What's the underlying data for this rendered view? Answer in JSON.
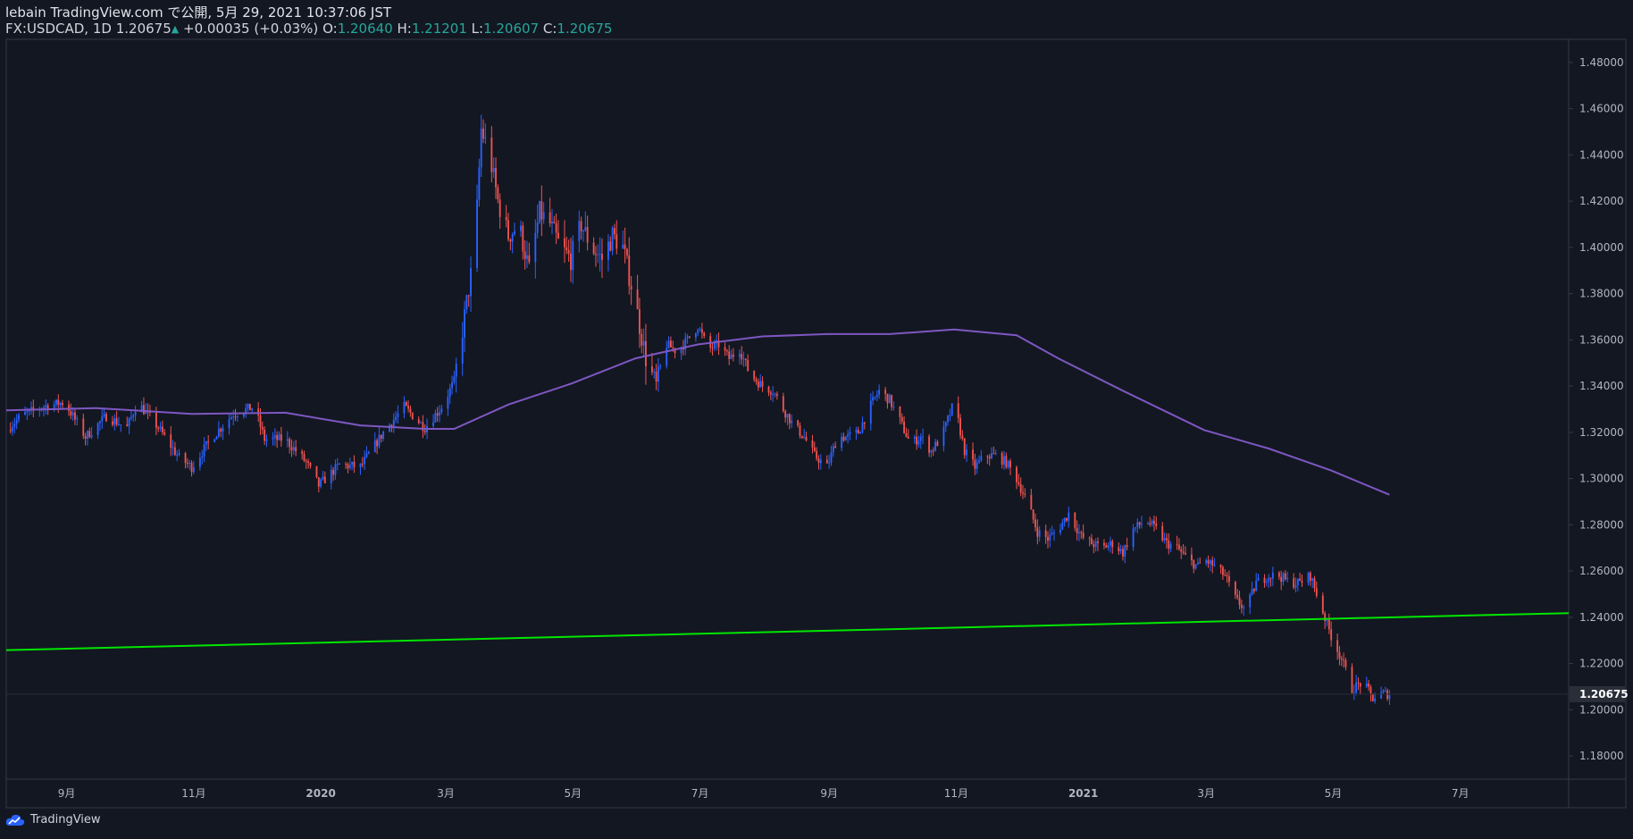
{
  "header": {
    "publish_line": "lebain TradingView.com で公開, 5月 29, 2021 10:37:06 JST",
    "symbol": "FX:USDCAD, 1D",
    "last": "1.20675",
    "change": "+0.00035 (+0.03%)",
    "ohlc": [
      {
        "key": "O:",
        "value": "1.20640"
      },
      {
        "key": "H:",
        "value": "1.21201"
      },
      {
        "key": "L:",
        "value": "1.20607"
      },
      {
        "key": "C:",
        "value": "1.20675"
      }
    ]
  },
  "footer": {
    "brand": "TradingView"
  },
  "colors": {
    "background": "#131722",
    "up": "#2962ff",
    "down": "#ef5350",
    "ma": "#7e57c2",
    "trendline": "#00e600",
    "ohlc_value": "#26a69a",
    "axis_text": "#b2b5be",
    "frame": "#363a45"
  },
  "chart_data": {
    "type": "candlestick",
    "symbol": "FX:USDCAD",
    "interval": "1D",
    "last_price": "1.20675",
    "ylim": [
      1.17,
      1.49
    ],
    "y_ticks": [
      "1.18000",
      "1.20000",
      "1.22000",
      "1.24000",
      "1.26000",
      "1.28000",
      "1.30000",
      "1.32000",
      "1.34000",
      "1.36000",
      "1.38000",
      "1.40000",
      "1.42000",
      "1.44000",
      "1.46000",
      "1.48000"
    ],
    "x_ticks": [
      {
        "label": "9月",
        "date": "2019-09-01"
      },
      {
        "label": "11月",
        "date": "2019-11-01"
      },
      {
        "label": "2020",
        "date": "2020-01-01"
      },
      {
        "label": "3月",
        "date": "2020-03-01"
      },
      {
        "label": "5月",
        "date": "2020-05-01"
      },
      {
        "label": "7月",
        "date": "2020-07-01"
      },
      {
        "label": "9月",
        "date": "2020-09-01"
      },
      {
        "label": "11月",
        "date": "2020-11-01"
      },
      {
        "label": "2021",
        "date": "2021-01-01"
      },
      {
        "label": "3月",
        "date": "2021-03-01"
      },
      {
        "label": "5月",
        "date": "2021-05-01"
      },
      {
        "label": "7月",
        "date": "2021-07-01"
      }
    ],
    "xlim": [
      "2019-08-03",
      "2021-08-22"
    ],
    "close_path": [
      [
        "2019-08-03",
        1.321
      ],
      [
        "2019-08-10",
        1.327
      ],
      [
        "2019-08-20",
        1.331
      ],
      [
        "2019-08-31",
        1.333
      ],
      [
        "2019-09-10",
        1.318
      ],
      [
        "2019-09-20",
        1.327
      ],
      [
        "2019-09-30",
        1.322
      ],
      [
        "2019-10-05",
        1.333
      ],
      [
        "2019-10-15",
        1.322
      ],
      [
        "2019-10-25",
        1.309
      ],
      [
        "2019-10-31",
        1.305
      ],
      [
        "2019-11-10",
        1.318
      ],
      [
        "2019-11-20",
        1.328
      ],
      [
        "2019-11-30",
        1.331
      ],
      [
        "2019-12-05",
        1.317
      ],
      [
        "2019-12-15",
        1.317
      ],
      [
        "2019-12-25",
        1.307
      ],
      [
        "2019-12-31",
        1.297
      ],
      [
        "2020-01-10",
        1.306
      ],
      [
        "2020-01-20",
        1.305
      ],
      [
        "2020-01-31",
        1.32
      ],
      [
        "2020-02-10",
        1.331
      ],
      [
        "2020-02-20",
        1.322
      ],
      [
        "2020-02-28",
        1.331
      ],
      [
        "2020-03-05",
        1.342
      ],
      [
        "2020-03-10",
        1.37
      ],
      [
        "2020-03-15",
        1.4
      ],
      [
        "2020-03-18",
        1.451
      ],
      [
        "2020-03-22",
        1.44
      ],
      [
        "2020-03-26",
        1.42
      ],
      [
        "2020-03-31",
        1.405
      ],
      [
        "2020-04-05",
        1.41
      ],
      [
        "2020-04-10",
        1.39
      ],
      [
        "2020-04-15",
        1.415
      ],
      [
        "2020-04-20",
        1.41
      ],
      [
        "2020-04-25",
        1.4
      ],
      [
        "2020-04-30",
        1.395
      ],
      [
        "2020-05-05",
        1.41
      ],
      [
        "2020-05-10",
        1.4
      ],
      [
        "2020-05-15",
        1.395
      ],
      [
        "2020-05-20",
        1.405
      ],
      [
        "2020-05-25",
        1.4
      ],
      [
        "2020-05-31",
        1.376
      ],
      [
        "2020-06-05",
        1.352
      ],
      [
        "2020-06-10",
        1.34
      ],
      [
        "2020-06-15",
        1.358
      ],
      [
        "2020-06-20",
        1.355
      ],
      [
        "2020-06-25",
        1.36
      ],
      [
        "2020-06-30",
        1.366
      ],
      [
        "2020-07-05",
        1.356
      ],
      [
        "2020-07-10",
        1.358
      ],
      [
        "2020-07-15",
        1.352
      ],
      [
        "2020-07-20",
        1.356
      ],
      [
        "2020-07-25",
        1.345
      ],
      [
        "2020-07-31",
        1.34
      ],
      [
        "2020-08-05",
        1.338
      ],
      [
        "2020-08-10",
        1.33
      ],
      [
        "2020-08-15",
        1.323
      ],
      [
        "2020-08-20",
        1.318
      ],
      [
        "2020-08-25",
        1.31
      ],
      [
        "2020-08-31",
        1.305
      ],
      [
        "2020-09-05",
        1.318
      ],
      [
        "2020-09-10",
        1.318
      ],
      [
        "2020-09-15",
        1.32
      ],
      [
        "2020-09-20",
        1.33
      ],
      [
        "2020-09-25",
        1.338
      ],
      [
        "2020-09-30",
        1.334
      ],
      [
        "2020-10-05",
        1.325
      ],
      [
        "2020-10-10",
        1.315
      ],
      [
        "2020-10-15",
        1.318
      ],
      [
        "2020-10-20",
        1.312
      ],
      [
        "2020-10-25",
        1.318
      ],
      [
        "2020-10-31",
        1.333
      ],
      [
        "2020-11-05",
        1.312
      ],
      [
        "2020-11-10",
        1.305
      ],
      [
        "2020-11-15",
        1.31
      ],
      [
        "2020-11-20",
        1.31
      ],
      [
        "2020-11-25",
        1.307
      ],
      [
        "2020-11-30",
        1.3
      ],
      [
        "2020-12-05",
        1.29
      ],
      [
        "2020-12-10",
        1.277
      ],
      [
        "2020-12-15",
        1.274
      ],
      [
        "2020-12-20",
        1.278
      ],
      [
        "2020-12-25",
        1.285
      ],
      [
        "2020-12-31",
        1.275
      ],
      [
        "2021-01-05",
        1.272
      ],
      [
        "2021-01-10",
        1.27
      ],
      [
        "2021-01-15",
        1.272
      ],
      [
        "2021-01-20",
        1.268
      ],
      [
        "2021-01-25",
        1.278
      ],
      [
        "2021-01-31",
        1.282
      ],
      [
        "2021-02-05",
        1.278
      ],
      [
        "2021-02-10",
        1.272
      ],
      [
        "2021-02-15",
        1.27
      ],
      [
        "2021-02-20",
        1.265
      ],
      [
        "2021-02-25",
        1.262
      ],
      [
        "2021-02-28",
        1.265
      ],
      [
        "2021-03-05",
        1.262
      ],
      [
        "2021-03-10",
        1.258
      ],
      [
        "2021-03-15",
        1.248
      ],
      [
        "2021-03-20",
        1.243
      ],
      [
        "2021-03-25",
        1.255
      ],
      [
        "2021-03-31",
        1.258
      ],
      [
        "2021-04-05",
        1.258
      ],
      [
        "2021-04-10",
        1.255
      ],
      [
        "2021-04-15",
        1.255
      ],
      [
        "2021-04-20",
        1.258
      ],
      [
        "2021-04-25",
        1.245
      ],
      [
        "2021-04-30",
        1.232
      ],
      [
        "2021-05-05",
        1.222
      ],
      [
        "2021-05-10",
        1.209
      ],
      [
        "2021-05-15",
        1.212
      ],
      [
        "2021-05-20",
        1.205
      ],
      [
        "2021-05-25",
        1.207
      ],
      [
        "2021-05-28",
        1.20675
      ]
    ],
    "series": [
      {
        "type": "line",
        "color": "#7e57c2",
        "points": [
          [
            "2019-08-03",
            1.3295
          ],
          [
            "2019-09-15",
            1.3305
          ],
          [
            "2019-10-31",
            1.328
          ],
          [
            "2019-12-15",
            1.3285
          ],
          [
            "2020-01-20",
            1.323
          ],
          [
            "2020-02-20",
            1.3215
          ],
          [
            "2020-03-05",
            1.3215
          ],
          [
            "2020-03-31",
            1.332
          ],
          [
            "2020-04-30",
            1.341
          ],
          [
            "2020-05-31",
            1.352
          ],
          [
            "2020-06-30",
            1.358
          ],
          [
            "2020-07-31",
            1.3615
          ],
          [
            "2020-08-31",
            1.3625
          ],
          [
            "2020-09-30",
            1.3625
          ],
          [
            "2020-10-31",
            1.3645
          ],
          [
            "2020-11-30",
            1.362
          ],
          [
            "2020-12-20",
            1.352
          ],
          [
            "2021-01-20",
            1.338
          ],
          [
            "2021-02-28",
            1.321
          ],
          [
            "2021-03-31",
            1.313
          ],
          [
            "2021-04-30",
            1.3035
          ],
          [
            "2021-05-28",
            1.293
          ]
        ]
      },
      {
        "type": "line",
        "color": "#00e600",
        "points": [
          [
            "2019-08-03",
            1.2258
          ],
          [
            "2021-08-22",
            1.2418
          ]
        ]
      }
    ],
    "grid": false,
    "legend": "none"
  }
}
